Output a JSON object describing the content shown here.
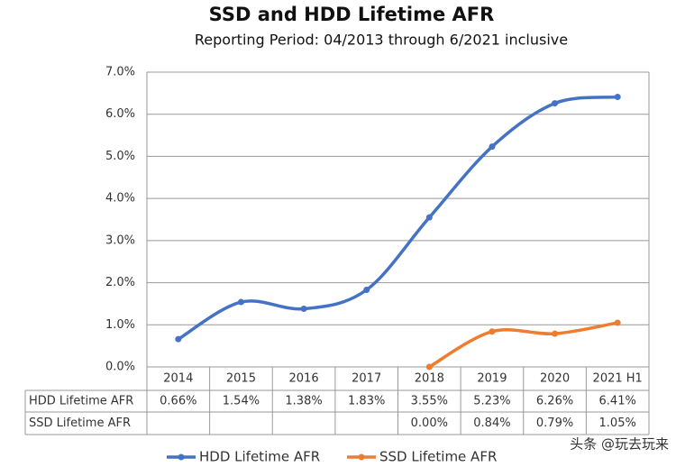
{
  "chart_data": {
    "type": "line",
    "title": "SSD and HDD Lifetime AFR",
    "subtitle": "Reporting Period: 04/2013 through 6/2021 inclusive",
    "categories": [
      "2014",
      "2015",
      "2016",
      "2017",
      "2018",
      "2019",
      "2020",
      "2021 H1"
    ],
    "series": [
      {
        "name": "HDD Lifetime AFR",
        "color": "#4472c4",
        "values": [
          0.66,
          1.54,
          1.38,
          1.83,
          3.55,
          5.23,
          6.26,
          6.41
        ],
        "value_labels": [
          "0.66%",
          "1.54%",
          "1.38%",
          "1.83%",
          "3.55%",
          "5.23%",
          "6.26%",
          "6.41%"
        ]
      },
      {
        "name": "SSD Lifetime AFR",
        "color": "#ed7d31",
        "values": [
          null,
          null,
          null,
          null,
          0.0,
          0.84,
          0.79,
          1.05
        ],
        "value_labels": [
          null,
          null,
          null,
          null,
          "0.00%",
          "0.84%",
          "0.79%",
          "1.05%"
        ]
      }
    ],
    "ylim": [
      0,
      7
    ],
    "yticks": [
      {
        "value": 0,
        "label": "0.0%"
      },
      {
        "value": 1,
        "label": "1.0%"
      },
      {
        "value": 2,
        "label": "2.0%"
      },
      {
        "value": 3,
        "label": "3.0%"
      },
      {
        "value": 4,
        "label": "4.0%"
      },
      {
        "value": 5,
        "label": "5.0%"
      },
      {
        "value": 6,
        "label": "6.0%"
      },
      {
        "value": 7,
        "label": "7.0%"
      }
    ],
    "grid": true,
    "smooth": true,
    "data_table": true,
    "legend": "bottom",
    "watermark": "头条 @玩去玩来"
  }
}
